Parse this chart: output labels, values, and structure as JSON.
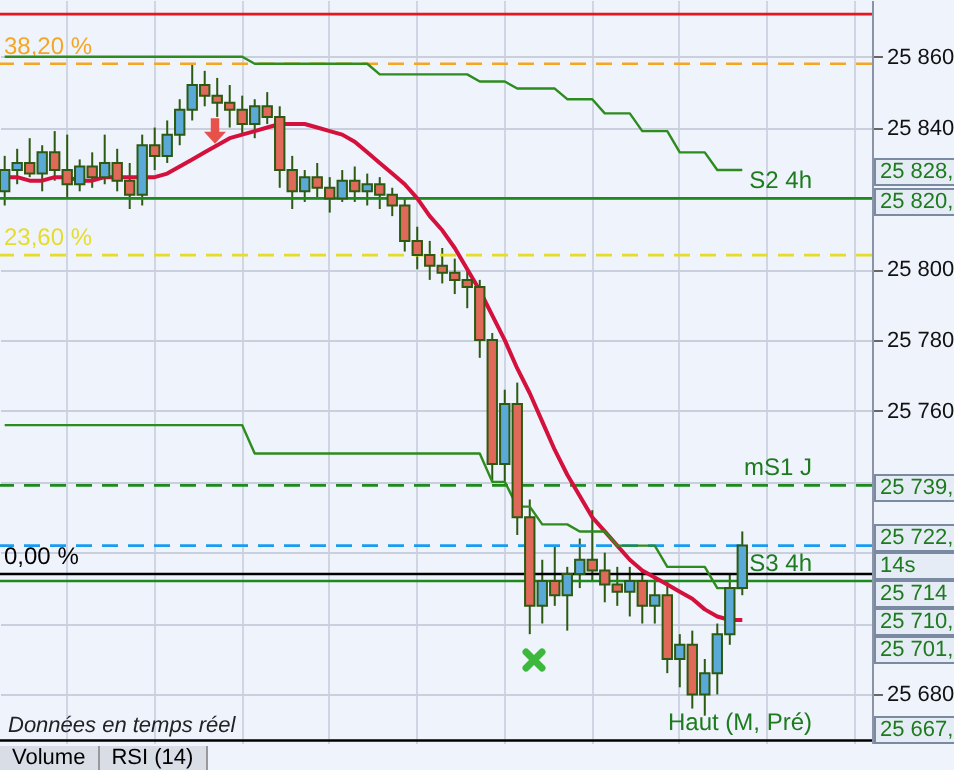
{
  "chart_data": {
    "type": "candlestick",
    "categories": [
      null,
      null,
      null,
      null,
      null,
      null,
      null,
      null,
      null,
      null,
      null,
      null,
      null,
      null,
      null,
      null,
      null,
      null,
      null,
      null,
      null,
      null,
      null,
      null,
      null,
      null,
      null,
      null,
      null,
      null,
      null,
      null,
      null,
      null,
      null,
      null,
      null,
      null,
      null,
      null,
      null,
      null,
      null,
      null,
      null,
      null,
      null,
      null,
      null,
      null,
      null,
      null,
      null,
      null,
      null,
      null,
      null,
      null,
      null,
      null,
      null,
      null,
      null,
      null,
      null,
      null,
      null,
      null,
      null,
      null
    ],
    "ohlc": [
      [
        25822,
        25832,
        25818,
        25828
      ],
      [
        25828,
        25834,
        25824,
        25830
      ],
      [
        25830,
        25837,
        25826,
        25827
      ],
      [
        25827,
        25835,
        25822,
        25833
      ],
      [
        25833,
        25839,
        25825,
        25828
      ],
      [
        25828,
        25838,
        25820,
        25824
      ],
      [
        25824,
        25831,
        25822,
        25829
      ],
      [
        25829,
        25833,
        25823,
        25826
      ],
      [
        25826,
        25838,
        25824,
        25830
      ],
      [
        25830,
        25834,
        25822,
        25825
      ],
      [
        25825,
        25830,
        25817,
        25821
      ],
      [
        25821,
        25838,
        25818,
        25835
      ],
      [
        25835,
        25840,
        25828,
        25832
      ],
      [
        25832,
        25842,
        25830,
        25838
      ],
      [
        25838,
        25848,
        25835,
        25845
      ],
      [
        25845,
        25858,
        25842,
        25852
      ],
      [
        25852,
        25856,
        25846,
        25849
      ],
      [
        25849,
        25854,
        25843,
        25847
      ],
      [
        25847,
        25852,
        25840,
        25845
      ],
      [
        25845,
        25849,
        25838,
        25841
      ],
      [
        25841,
        25848,
        25837,
        25846
      ],
      [
        25846,
        25850,
        25841,
        25843
      ],
      [
        25843,
        25846,
        25823,
        25828
      ],
      [
        25828,
        25832,
        25817,
        25822
      ],
      [
        25822,
        25828,
        25819,
        25826
      ],
      [
        25826,
        25830,
        25820,
        25823
      ],
      [
        25823,
        25826,
        25816,
        25820
      ],
      [
        25820,
        25828,
        25819,
        25825
      ],
      [
        25825,
        25829,
        25819,
        25822
      ],
      [
        25822,
        25827,
        25818,
        25824
      ],
      [
        25824,
        25826,
        25817,
        25821
      ],
      [
        25821,
        25823,
        25815,
        25818
      ],
      [
        25818,
        25820,
        25805,
        25808
      ],
      [
        25808,
        25812,
        25800,
        25804
      ],
      [
        25804,
        25808,
        25797,
        25801
      ],
      [
        25801,
        25806,
        25796,
        25799
      ],
      [
        25799,
        25803,
        25793,
        25797
      ],
      [
        25797,
        25800,
        25789,
        25795
      ],
      [
        25795,
        25797,
        25775,
        25780
      ],
      [
        25780,
        25782,
        25740,
        25745
      ],
      [
        25745,
        25766,
        25740,
        25762
      ],
      [
        25762,
        25768,
        25725,
        25730
      ],
      [
        25730,
        25735,
        25697,
        25705
      ],
      [
        25705,
        25718,
        25700,
        25712
      ],
      [
        25712,
        25722,
        25705,
        25708
      ],
      [
        25708,
        25716,
        25698,
        25714
      ],
      [
        25714,
        25724,
        25710,
        25718
      ],
      [
        25718,
        25732,
        25712,
        25715
      ],
      [
        25715,
        25720,
        25706,
        25711
      ],
      [
        25711,
        25716,
        25705,
        25709
      ],
      [
        25709,
        25716,
        25702,
        25712
      ],
      [
        25712,
        25715,
        25700,
        25705
      ],
      [
        25705,
        25713,
        25700,
        25708
      ],
      [
        25708,
        25712,
        25686,
        25690
      ],
      [
        25690,
        25697,
        25682,
        25694
      ],
      [
        25694,
        25698,
        25676,
        25680
      ],
      [
        25680,
        25690,
        25674,
        25686
      ],
      [
        25686,
        25700,
        25680,
        25697
      ],
      [
        25697,
        25714,
        25694,
        25710
      ],
      [
        25710,
        25726,
        25708,
        25722
      ],
      null,
      null,
      null,
      null,
      null,
      null,
      null,
      null,
      null,
      null
    ],
    "series": [
      {
        "type": "line",
        "color": "#d4103c",
        "values": [
          25826,
          25826,
          25825,
          25825,
          25826,
          25826,
          25825,
          25825,
          25826,
          25826,
          25826,
          25826,
          25826,
          25827,
          25829,
          25831,
          25833,
          25835,
          25837,
          25838,
          25839,
          25840,
          25841,
          25841,
          25841,
          25840,
          25839,
          25838,
          25836,
          25833,
          25830,
          25827,
          25824,
          25820,
          25815,
          25811,
          25806,
          25800,
          25794,
          25787,
          25780,
          25772,
          25765,
          25757,
          25749,
          25742,
          25736,
          25730,
          25726,
          25722,
          25718,
          25715,
          25713,
          25711,
          25709,
          25707,
          25704,
          25702,
          25701,
          25701,
          null,
          null,
          null,
          null,
          null,
          null,
          null,
          null,
          null,
          null
        ]
      },
      {
        "type": "line",
        "color": "#2e8b1e",
        "values": [
          25860,
          25860,
          25860,
          25860,
          25860,
          25860,
          25860,
          25860,
          25860,
          25860,
          25860,
          25860,
          25860,
          25860,
          25860,
          25860,
          25860,
          25860,
          25860,
          25860,
          25858,
          25858,
          25858,
          25858,
          25858,
          25858,
          25858,
          25858,
          25858,
          25858,
          25855,
          25855,
          25855,
          25855,
          25855,
          25855,
          25855,
          25855,
          25853,
          25853,
          25853,
          25851,
          25851,
          25851,
          25851,
          25848,
          25848,
          25848,
          25844,
          25844,
          25844,
          25839,
          25839,
          25839,
          25833,
          25833,
          25833,
          25828,
          25828,
          25828,
          null,
          null,
          null,
          null,
          null,
          null,
          null,
          null,
          null,
          null
        ]
      },
      {
        "type": "line",
        "color": "#2e8b1e",
        "values": [
          25756,
          25756,
          25756,
          25756,
          25756,
          25756,
          25756,
          25756,
          25756,
          25756,
          25756,
          25756,
          25756,
          25756,
          25756,
          25756,
          25756,
          25756,
          25756,
          25756,
          25748,
          25748,
          25748,
          25748,
          25748,
          25748,
          25748,
          25748,
          25748,
          25748,
          25748,
          25748,
          25748,
          25748,
          25748,
          25748,
          25748,
          25748,
          25748,
          25740,
          25740,
          25733,
          25733,
          25728,
          25728,
          25728,
          25726,
          25726,
          25726,
          25722,
          25722,
          25722,
          25722,
          25716,
          25716,
          25716,
          25716,
          25710,
          25710,
          25710,
          null,
          null,
          null,
          null,
          null,
          null,
          null,
          null,
          null,
          null
        ]
      }
    ],
    "ylim": [
      25666,
      25876
    ],
    "yticks": [
      {
        "value": 25680,
        "label": "25 680"
      },
      {
        "value": 25700,
        "label": null
      },
      {
        "value": 25720,
        "label": null
      },
      {
        "value": 25740,
        "label": null
      },
      {
        "value": 25760,
        "label": "25 760"
      },
      {
        "value": 25780,
        "label": "25 780"
      },
      {
        "value": 25800,
        "label": "25 800"
      },
      {
        "value": 25820,
        "label": null
      },
      {
        "value": 25840,
        "label": "25 840"
      },
      {
        "value": 25860,
        "label": "25 860"
      }
    ],
    "tick_labels": "y",
    "grid": true,
    "ref_lines": [
      {
        "axis": "y",
        "value": 25858,
        "color": "#f5a623",
        "line_style": "dashed"
      },
      {
        "axis": "y",
        "value": 25820,
        "label": "S2 4h",
        "color": "#1e8a1e",
        "line_style": "solid"
      },
      {
        "axis": "y",
        "value": 25804,
        "color": "#e6dc2a",
        "line_style": "dashed"
      },
      {
        "axis": "y",
        "value": 25739,
        "label": "mS1 J",
        "color": "#1e8a1e",
        "line_style": "dashed"
      },
      {
        "axis": "y",
        "value": 25714,
        "color": "#000000",
        "line_style": "solid"
      },
      {
        "axis": "y",
        "value": 25712,
        "label": "S3 4h",
        "color": "#1e8a1e",
        "line_style": "solid"
      },
      {
        "axis": "y",
        "value": 25872,
        "color": "#e8141e",
        "line_style": "solid"
      },
      {
        "axis": "y",
        "value": 25667,
        "label": "Haut (M, Pré)",
        "color": "#000000",
        "line_style": "solid"
      },
      {
        "axis": "y",
        "value": 25722,
        "color": "#1a9cf0",
        "line_style": "dashed"
      }
    ],
    "annotations": [
      "25 828,",
      "25 820,",
      "25 739,",
      "25 722,",
      "14s",
      "25 714",
      "25 710,",
      "25 701,",
      "25 667,",
      "Données en temps réel",
      "Volume",
      "RSI (14)",
      {
        "text": "38,20 %",
        "y": 25858
      },
      {
        "text": "23,60 %",
        "y": 25804
      },
      {
        "text": "0,00 %",
        "y": 25714
      }
    ]
  }
}
